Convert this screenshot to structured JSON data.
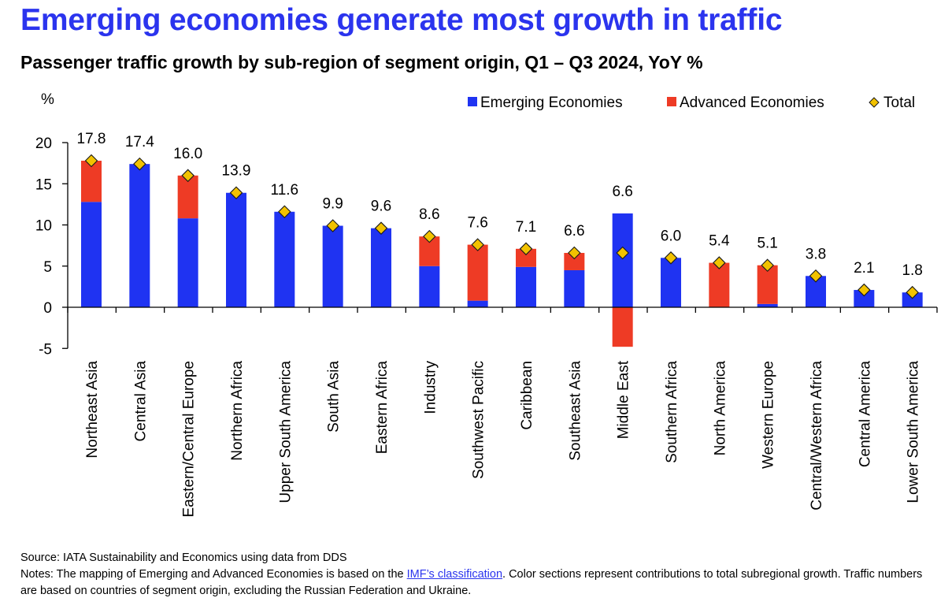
{
  "title": "Emerging economies generate most growth in traffic",
  "subtitle": "Passenger traffic growth by sub-region of segment origin, Q1 – Q3 2024, YoY %",
  "colors": {
    "title": "#2b34ee",
    "emerging": "#1f33f2",
    "advanced": "#ee3b25",
    "total_marker": "#f2c200",
    "axis": "#000000"
  },
  "chart_data": {
    "type": "bar",
    "stacked": true,
    "ylabel": "%",
    "ylim": [
      -5,
      20
    ],
    "yticks": [
      20,
      15,
      10,
      5,
      0,
      -5
    ],
    "ytick_labels": [
      "20",
      "15",
      "10",
      "5",
      "0",
      "-5"
    ],
    "legend_position": "top-right",
    "categories": [
      "Northeast Asia",
      "Central Asia",
      "Eastern/Central Europe",
      "Northern Africa",
      "Upper South America",
      "South Asia",
      "Eastern Africa",
      "Industry",
      "Southwest Pacific",
      "Caribbean",
      "Southeast Asia",
      "Middle East",
      "Southern Africa",
      "North America",
      "Western Europe",
      "Central/Western Africa",
      "Central America",
      "Lower South America"
    ],
    "series": [
      {
        "name": "Emerging Economies",
        "kind": "bar",
        "values": [
          12.8,
          17.4,
          10.8,
          13.9,
          11.6,
          9.9,
          9.6,
          5.0,
          0.8,
          4.9,
          4.5,
          11.4,
          6.0,
          0.0,
          0.4,
          3.8,
          2.1,
          1.8
        ]
      },
      {
        "name": "Advanced Economies",
        "kind": "bar",
        "values": [
          5.0,
          0.0,
          5.2,
          0.0,
          0.0,
          0.0,
          0.0,
          3.6,
          6.8,
          2.2,
          2.1,
          -4.8,
          0.0,
          5.4,
          4.7,
          0.0,
          0.0,
          0.0
        ]
      },
      {
        "name": "Total",
        "kind": "marker",
        "values": [
          17.8,
          17.4,
          16.0,
          13.9,
          11.6,
          9.9,
          9.6,
          8.6,
          7.6,
          7.1,
          6.6,
          6.6,
          6.0,
          5.4,
          5.1,
          3.8,
          2.1,
          1.8
        ]
      }
    ],
    "data_labels": [
      "17.8",
      "17.4",
      "16.0",
      "13.9",
      "11.6",
      "9.9",
      "9.6",
      "8.6",
      "7.6",
      "7.1",
      "6.6",
      "6.6",
      "6.0",
      "5.4",
      "5.1",
      "3.8",
      "2.1",
      "1.8"
    ]
  },
  "footer": {
    "source": "Source: IATA Sustainability and Economics using data from DDS",
    "notes_prefix": "Notes: The mapping of Emerging and Advanced Economies is based on the ",
    "notes_link": "IMF’s classification",
    "notes_suffix": ". Color sections represent contributions to total subregional growth. Traffic numbers are based on countries of segment origin, excluding the Russian Federation and Ukraine."
  }
}
